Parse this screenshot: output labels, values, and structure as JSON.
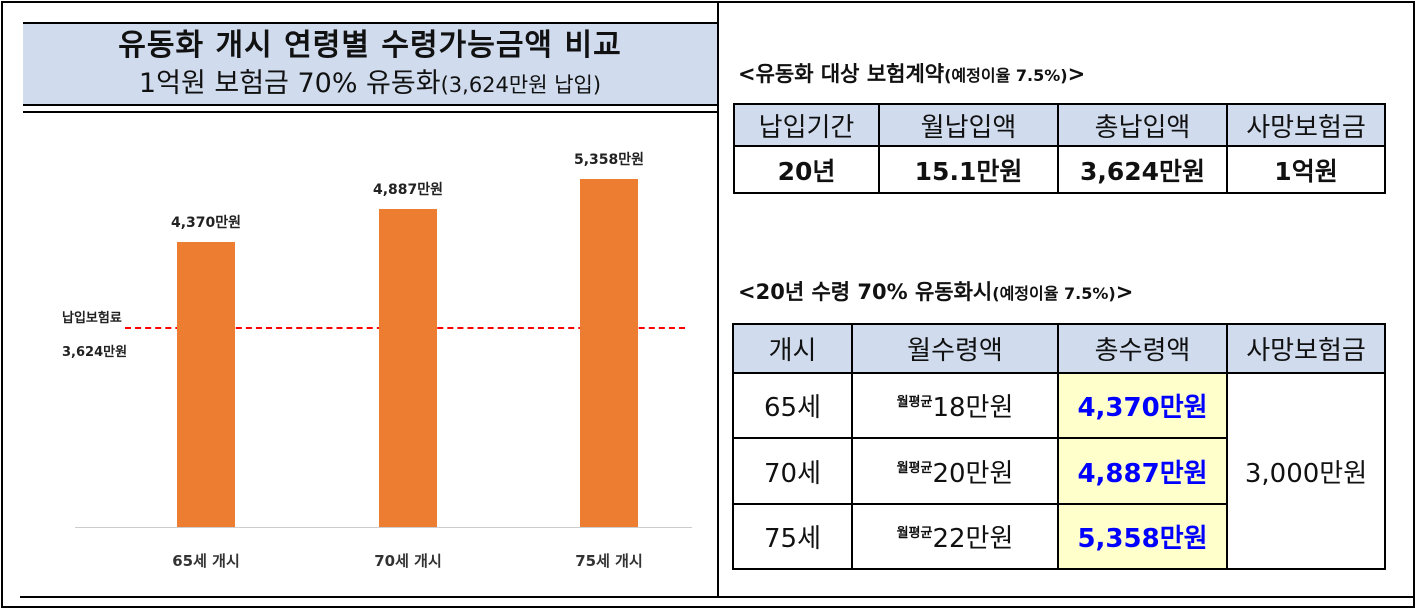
{
  "title": {
    "line1": "유동화 개시 연령별 수령가능금액 비교",
    "line2": "1억원 보험금 70% 유동화",
    "line2_small": "(3,624만원 납입)"
  },
  "chart_data": {
    "type": "bar",
    "categories": [
      "65세 개시",
      "70세 개시",
      "75세 개시"
    ],
    "values": [
      4370,
      4887,
      5358
    ],
    "value_labels": [
      "4,370만원",
      "4,887만원",
      "5,358만원"
    ],
    "unit": "만원",
    "reference_line": {
      "value": 3624,
      "label1": "납입보험료",
      "label2": "3,624만원",
      "color": "#ff0000"
    },
    "bar_color": "#ed7d31"
  },
  "table1": {
    "heading": "<유동화 대상 보험계약",
    "heading_small": "(예정이율 7.5%)",
    "heading_end": ">",
    "headers": [
      "납입기간",
      "월납입액",
      "총납입액",
      "사망보험금"
    ],
    "row": [
      "20년",
      "15.1만원",
      "3,624만원",
      "1억원"
    ]
  },
  "table2": {
    "heading": "<20년 수령 70% 유동화시",
    "heading_small": "(예정이율 7.5%)",
    "heading_end": ">",
    "headers": [
      "개시",
      "월수령액",
      "총수령액",
      "사망보험금"
    ],
    "prefix": "월평균",
    "rows": [
      {
        "age": "65세",
        "monthly": "18만원",
        "total": "4,370만원"
      },
      {
        "age": "70세",
        "monthly": "20만원",
        "total": "4,887만원"
      },
      {
        "age": "75세",
        "monthly": "22만원",
        "total": "5,358만원"
      }
    ],
    "death_benefit": "3,000만원"
  }
}
